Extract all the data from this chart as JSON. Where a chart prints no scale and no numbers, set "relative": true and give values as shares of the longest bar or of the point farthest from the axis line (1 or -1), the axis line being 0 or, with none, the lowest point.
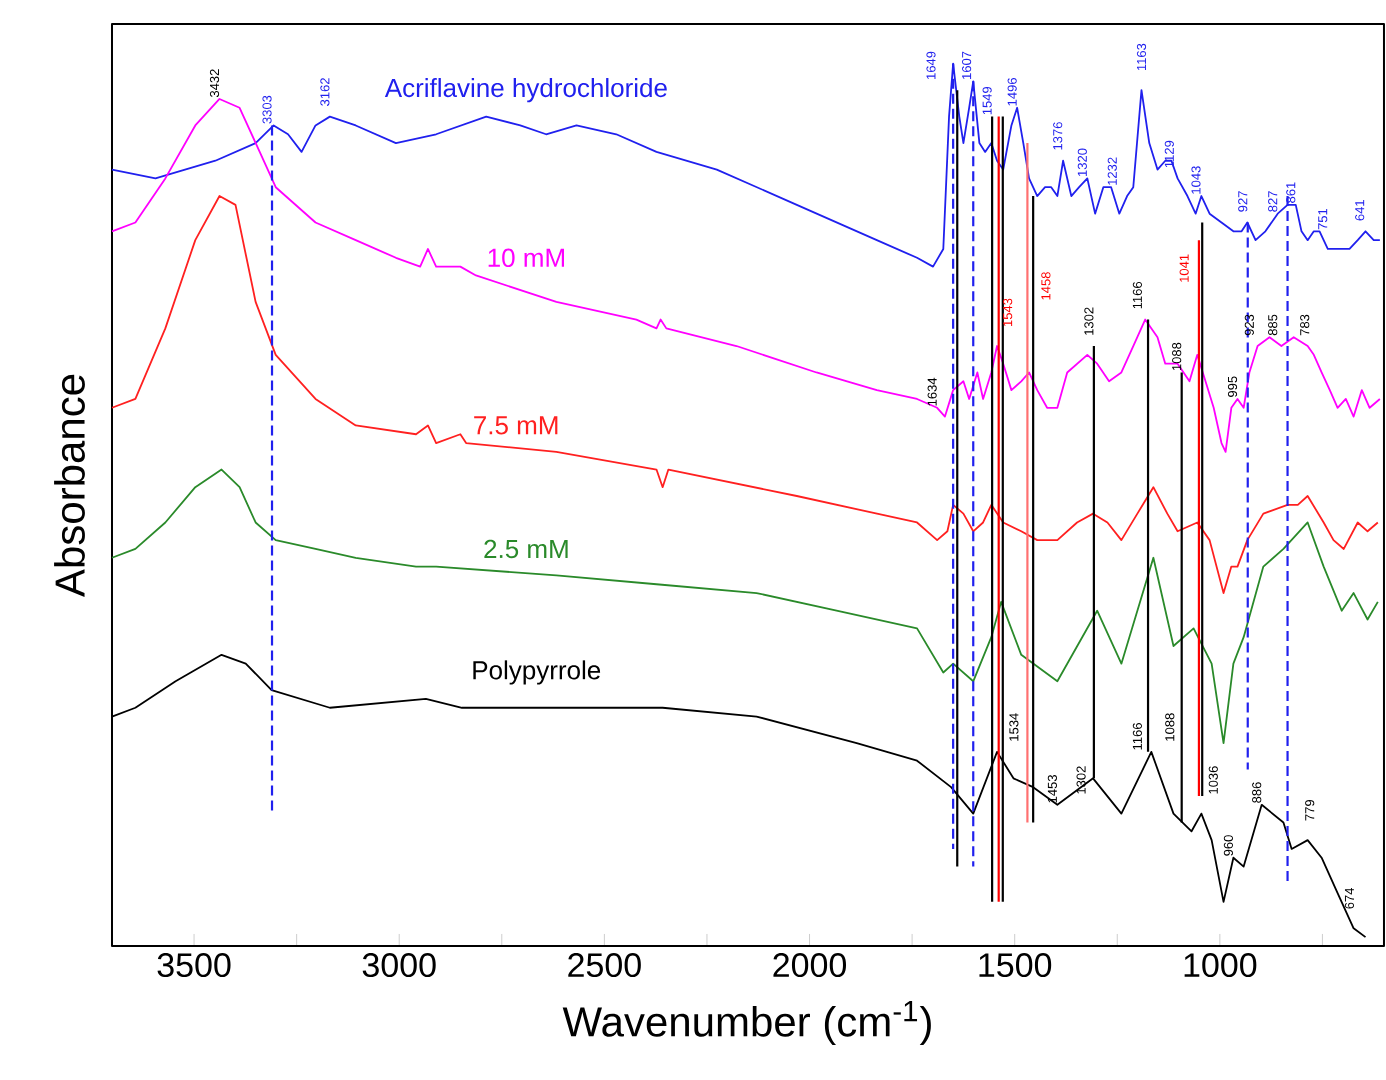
{
  "chart_data": {
    "type": "line",
    "relative": true,
    "xlabel": "Wavenumber (cm$^{-1}$)",
    "ylabel": "Absorbance",
    "xlim": [
      3700,
      600
    ],
    "xticks": [
      3500,
      {
        "value": 3250,
        "label": null
      },
      3000,
      {
        "value": 2750,
        "label": null
      },
      2500,
      {
        "value": 2250,
        "label": null
      },
      2000,
      {
        "value": 1750,
        "label": null
      },
      1500,
      {
        "value": 1250,
        "label": null
      },
      1000,
      {
        "value": 750,
        "label": null
      }
    ],
    "line_style": "solid",
    "series": [
      {
        "name": "Acriflavine hydrochloride",
        "color": "#2020ee",
        "x": [
          3700,
          3594,
          3448,
          3350,
          3306,
          3271,
          3238,
          3204,
          3169,
          3106,
          3008,
          2910,
          2788,
          2705,
          2642,
          2568,
          2471,
          2373,
          2226,
          2031,
          1836,
          1738,
          1699,
          1674,
          1660,
          1650,
          1635,
          1625,
          1611,
          1601,
          1586,
          1572,
          1557,
          1543,
          1528,
          1508,
          1494,
          1479,
          1465,
          1445,
          1426,
          1411,
          1396,
          1382,
          1362,
          1343,
          1323,
          1304,
          1284,
          1265,
          1245,
          1226,
          1211,
          1191,
          1172,
          1152,
          1133,
          1118,
          1103,
          1079,
          1059,
          1045,
          1025,
          996,
          967,
          947,
          933,
          913,
          889,
          859,
          835,
          815,
          801,
          786,
          771,
          757,
          737,
          713,
          684,
          664,
          645,
          625,
          610
        ],
        "values": [
          0.88,
          0.87,
          0.89,
          0.91,
          0.93,
          0.92,
          0.9,
          0.93,
          0.94,
          0.93,
          0.91,
          0.92,
          0.94,
          0.93,
          0.92,
          0.93,
          0.92,
          0.9,
          0.88,
          0.84,
          0.8,
          0.78,
          0.77,
          0.79,
          0.94,
          1.0,
          0.94,
          0.91,
          0.95,
          0.98,
          0.91,
          0.9,
          0.91,
          0.89,
          0.88,
          0.93,
          0.95,
          0.91,
          0.87,
          0.85,
          0.86,
          0.86,
          0.85,
          0.89,
          0.85,
          0.86,
          0.87,
          0.83,
          0.86,
          0.86,
          0.83,
          0.85,
          0.86,
          0.97,
          0.91,
          0.88,
          0.89,
          0.89,
          0.87,
          0.85,
          0.83,
          0.85,
          0.83,
          0.82,
          0.81,
          0.81,
          0.82,
          0.8,
          0.81,
          0.83,
          0.84,
          0.84,
          0.81,
          0.8,
          0.81,
          0.81,
          0.79,
          0.79,
          0.79,
          0.8,
          0.81,
          0.8,
          0.8
        ]
      },
      {
        "name": "10 mM",
        "color": "#ff00ff",
        "x": [
          3700,
          3643,
          3570,
          3497,
          3438,
          3389,
          3340,
          3301,
          3204,
          3106,
          3008,
          2949,
          2930,
          2910,
          2861,
          2851,
          2813,
          2617,
          2422,
          2373,
          2363,
          2349,
          2178,
          1983,
          1836,
          1738,
          1689,
          1670,
          1650,
          1625,
          1611,
          1591,
          1577,
          1557,
          1543,
          1528,
          1508,
          1484,
          1465,
          1445,
          1421,
          1396,
          1372,
          1323,
          1299,
          1270,
          1240,
          1211,
          1182,
          1152,
          1133,
          1103,
          1074,
          1055,
          1035,
          1015,
          996,
          986,
          972,
          957,
          942,
          928,
          908,
          879,
          850,
          820,
          786,
          771,
          752,
          732,
          713,
          693,
          674,
          654,
          635,
          610
        ],
        "values": [
          0.81,
          0.82,
          0.87,
          0.93,
          0.96,
          0.95,
          0.9,
          0.86,
          0.82,
          0.8,
          0.78,
          0.77,
          0.79,
          0.77,
          0.77,
          0.77,
          0.76,
          0.73,
          0.71,
          0.7,
          0.71,
          0.7,
          0.68,
          0.65,
          0.63,
          0.62,
          0.61,
          0.6,
          0.63,
          0.64,
          0.62,
          0.65,
          0.62,
          0.65,
          0.68,
          0.66,
          0.63,
          0.64,
          0.65,
          0.63,
          0.61,
          0.61,
          0.65,
          0.67,
          0.66,
          0.64,
          0.65,
          0.68,
          0.71,
          0.69,
          0.66,
          0.66,
          0.64,
          0.67,
          0.64,
          0.61,
          0.57,
          0.56,
          0.61,
          0.62,
          0.61,
          0.65,
          0.68,
          0.69,
          0.68,
          0.69,
          0.68,
          0.67,
          0.65,
          0.63,
          0.61,
          0.62,
          0.6,
          0.63,
          0.61,
          0.62
        ]
      },
      {
        "name": "7.5 mM",
        "color": "#ff2020",
        "x": [
          3700,
          3643,
          3570,
          3497,
          3438,
          3399,
          3350,
          3301,
          3204,
          3106,
          2959,
          2930,
          2910,
          2851,
          2837,
          2617,
          2373,
          2358,
          2344,
          2031,
          1738,
          1689,
          1664,
          1650,
          1625,
          1601,
          1577,
          1557,
          1528,
          1484,
          1445,
          1396,
          1348,
          1309,
          1274,
          1240,
          1201,
          1162,
          1128,
          1103,
          1055,
          1025,
          991,
          972,
          957,
          933,
          894,
          835,
          810,
          786,
          747,
          723,
          698,
          664,
          640,
          615
        ],
        "values": [
          0.61,
          0.62,
          0.7,
          0.8,
          0.85,
          0.84,
          0.73,
          0.67,
          0.62,
          0.59,
          0.58,
          0.59,
          0.57,
          0.58,
          0.57,
          0.56,
          0.54,
          0.52,
          0.54,
          0.51,
          0.48,
          0.46,
          0.47,
          0.5,
          0.49,
          0.47,
          0.48,
          0.5,
          0.48,
          0.47,
          0.46,
          0.46,
          0.48,
          0.49,
          0.48,
          0.46,
          0.49,
          0.52,
          0.49,
          0.47,
          0.48,
          0.46,
          0.4,
          0.43,
          0.43,
          0.46,
          0.49,
          0.5,
          0.5,
          0.51,
          0.48,
          0.46,
          0.45,
          0.48,
          0.47,
          0.48
        ]
      },
      {
        "name": "2.5 mM",
        "color": "#2a8a2a",
        "x": [
          3700,
          3643,
          3570,
          3497,
          3433,
          3389,
          3350,
          3301,
          3204,
          3106,
          2959,
          2935,
          2910,
          2617,
          2373,
          2129,
          1934,
          1738,
          1674,
          1650,
          1601,
          1557,
          1533,
          1484,
          1396,
          1299,
          1240,
          1162,
          1113,
          1064,
          1020,
          991,
          967,
          942,
          894,
          845,
          786,
          747,
          703,
          674,
          640,
          615
        ],
        "values": [
          0.44,
          0.45,
          0.48,
          0.52,
          0.54,
          0.52,
          0.48,
          0.46,
          0.45,
          0.44,
          0.43,
          0.43,
          0.43,
          0.42,
          0.41,
          0.4,
          0.38,
          0.36,
          0.31,
          0.32,
          0.3,
          0.35,
          0.39,
          0.33,
          0.3,
          0.38,
          0.32,
          0.44,
          0.34,
          0.36,
          0.32,
          0.23,
          0.32,
          0.35,
          0.43,
          0.45,
          0.48,
          0.43,
          0.38,
          0.4,
          0.37,
          0.39
        ]
      },
      {
        "name": "Polypyrrole",
        "color": "#000000",
        "x": [
          3700,
          3643,
          3545,
          3433,
          3374,
          3311,
          3169,
          2935,
          2847,
          2358,
          2129,
          1885,
          1738,
          1655,
          1601,
          1543,
          1503,
          1455,
          1396,
          1309,
          1240,
          1167,
          1113,
          1069,
          1045,
          1020,
          991,
          967,
          942,
          898,
          845,
          825,
          786,
          752,
          713,
          674,
          645
        ],
        "values": [
          0.26,
          0.27,
          0.3,
          0.33,
          0.32,
          0.29,
          0.27,
          0.28,
          0.27,
          0.27,
          0.26,
          0.23,
          0.21,
          0.18,
          0.15,
          0.22,
          0.19,
          0.18,
          0.16,
          0.19,
          0.15,
          0.22,
          0.15,
          0.13,
          0.15,
          0.12,
          0.05,
          0.1,
          0.09,
          0.16,
          0.14,
          0.11,
          0.12,
          0.1,
          0.06,
          0.02,
          0.01
        ]
      },
      {
        "color": "#2020ee",
        "line_style": "dashed",
        "x": [
          3310,
          3310
        ],
        "values": [
          0.93,
          0.15
        ]
      },
      {
        "color": "#000000",
        "x": [
          1640,
          1640
        ],
        "values": [
          0.97,
          0.09
        ]
      },
      {
        "color": "#2020ee",
        "line_style": "dashed",
        "x": [
          1650,
          1650
        ],
        "values": [
          1.0,
          0.11
        ]
      },
      {
        "color": "#2020ee",
        "line_style": "dashed",
        "x": [
          1601,
          1601
        ],
        "values": [
          0.98,
          0.09
        ]
      },
      {
        "color": "#000000",
        "x": [
          1555,
          1555
        ],
        "values": [
          0.94,
          0.05
        ]
      },
      {
        "color": "#ff0000",
        "x": [
          1539,
          1539
        ],
        "values": [
          0.94,
          0.05
        ]
      },
      {
        "color": "#000000",
        "x": [
          1529,
          1529
        ],
        "values": [
          0.94,
          0.05
        ]
      },
      {
        "color": "#ff7070",
        "x": [
          1469,
          1469
        ],
        "values": [
          0.91,
          0.14
        ]
      },
      {
        "color": "#000000",
        "x": [
          1455,
          1455
        ],
        "values": [
          0.85,
          0.14
        ]
      },
      {
        "color": "#000000",
        "x": [
          1307,
          1307
        ],
        "values": [
          0.68,
          0.19
        ]
      },
      {
        "color": "#000000",
        "x": [
          1175,
          1175
        ],
        "values": [
          0.71,
          0.22
        ]
      },
      {
        "color": "#000000",
        "x": [
          1093,
          1093
        ],
        "values": [
          0.65,
          0.14
        ]
      },
      {
        "color": "#ff0000",
        "x": [
          1051,
          1051
        ],
        "values": [
          0.8,
          0.17
        ]
      },
      {
        "color": "#000000",
        "x": [
          1043,
          1043
        ],
        "values": [
          0.82,
          0.17
        ]
      },
      {
        "color": "#2020ee",
        "line_style": "dashed",
        "x": [
          932,
          932
        ],
        "values": [
          0.82,
          0.2
        ]
      },
      {
        "color": "#2020ee",
        "line_style": "dashed",
        "x": [
          835,
          835
        ],
        "values": [
          0.85,
          0.07
        ]
      }
    ],
    "annotations": [
      {
        "text": "3432",
        "x": 3438,
        "y": 0.96
      },
      {
        "text": "3303",
        "x": 3310,
        "y": 0.93
      },
      {
        "text": "3162",
        "x": 3169,
        "y": 0.95
      },
      "1649",
      {
        "text": "1607",
        "x": 1605,
        "y": 0.98
      },
      {
        "text": "1549",
        "x": 1555,
        "y": 0.94
      },
      {
        "text": "1496",
        "x": 1494,
        "y": 0.95
      },
      {
        "text": "1376",
        "x": 1383,
        "y": 0.9
      },
      {
        "text": "1320",
        "x": 1323,
        "y": 0.87
      },
      {
        "text": "1232",
        "x": 1250,
        "y": 0.86
      },
      "1163",
      {
        "text": "1129",
        "x": 1111,
        "y": 0.88
      },
      {
        "text": "1043",
        "x": 1046,
        "y": 0.85
      },
      {
        "text": "927",
        "x": 932,
        "y": 0.83
      },
      {
        "text": "827",
        "x": 859,
        "y": 0.83
      },
      {
        "text": "861",
        "x": 815,
        "y": 0.84
      },
      {
        "text": "751",
        "x": 737,
        "y": 0.81
      },
      {
        "text": "641",
        "x": 647,
        "y": 0.82
      },
      {
        "text": "1634",
        "x": 1689,
        "y": 0.61
      },
      {
        "text": "1302",
        "x": 1307,
        "y": 0.69
      },
      "1166",
      {
        "text": "1088",
        "x": 1093,
        "y": 0.65
      },
      {
        "text": "995",
        "x": 957,
        "y": 0.62
      },
      {
        "text": "923",
        "x": 916,
        "y": 0.69
      },
      {
        "text": "885",
        "x": 859,
        "y": 0.69
      },
      {
        "text": "783",
        "x": 781,
        "y": 0.69
      },
      {
        "text": "1543",
        "x": 1505,
        "y": 0.7
      },
      "1458",
      "1041",
      "1534",
      {
        "text": "1453",
        "x": 1396,
        "y": 0.16
      },
      {
        "text": "1302",
        "x": 1326,
        "y": 0.17
      },
      "1166",
      "1088",
      "1036",
      {
        "text": "960",
        "x": 967,
        "y": 0.1
      },
      {
        "text": "886",
        "x": 898,
        "y": 0.16
      },
      "779",
      {
        "text": "674",
        "x": 672,
        "y": 0.04
      }
    ]
  }
}
